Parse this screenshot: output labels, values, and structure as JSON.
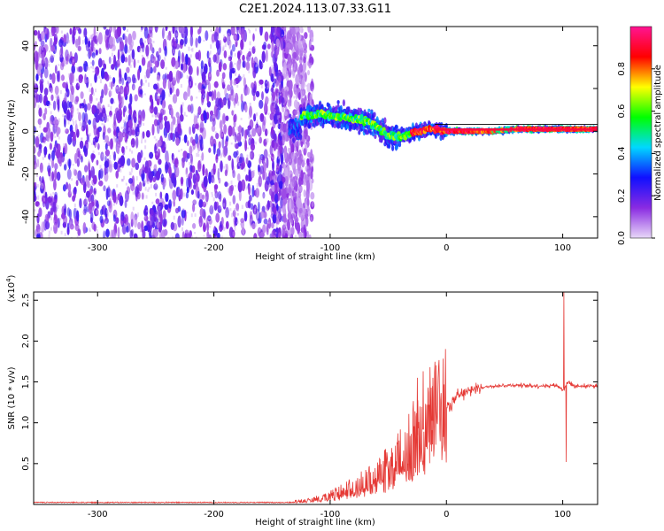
{
  "title": "C2E1.2024.113.07.33.G11",
  "chart_data": [
    {
      "type": "heatmap",
      "xlabel": "Height of straight line (km)",
      "ylabel": "Frequency (Hz)",
      "xlim": [
        -355,
        130
      ],
      "ylim": [
        -50,
        49
      ],
      "xticks": [
        "-300",
        "-200",
        "-100",
        "0",
        "100"
      ],
      "yticks": [
        "-40",
        "-20",
        "0",
        "20",
        "40"
      ],
      "ridge": [
        [
          -125,
          7
        ],
        [
          -110,
          8
        ],
        [
          -95,
          7
        ],
        [
          -80,
          6
        ],
        [
          -65,
          4
        ],
        [
          -50,
          -2
        ],
        [
          -40,
          -3
        ],
        [
          -30,
          -1
        ],
        [
          -15,
          1
        ],
        [
          0,
          0
        ],
        [
          20,
          0
        ],
        [
          40,
          0
        ],
        [
          60,
          1
        ],
        [
          80,
          1
        ],
        [
          100,
          1
        ],
        [
          125,
          1
        ]
      ],
      "colorbar": {
        "label": "Normalized spectral amplitude",
        "range": [
          0.0,
          1.0
        ],
        "ticks": [
          "0.0",
          "0.2",
          "0.4",
          "0.6",
          "0.8"
        ],
        "colors": [
          "#e8d8f8",
          "#8a2be2",
          "#1010ff",
          "#00d8ff",
          "#00ff00",
          "#ffff00",
          "#ff0000",
          "#ff1493"
        ]
      }
    },
    {
      "type": "line",
      "xlabel": "Height of straight line (km)",
      "ylabel": "SNR (10 * v/v)",
      "yscale_label": "(x10",
      "yscale_exp": "4",
      "xlim": [
        -355,
        130
      ],
      "ylim": [
        0,
        2.6
      ],
      "xticks": [
        "-300",
        "-200",
        "-100",
        "0",
        "100"
      ],
      "yticks": [
        "0.5",
        "1.0",
        "1.5",
        "2.0",
        "2.5"
      ],
      "color": "#e53935",
      "envelope": [
        [
          -355,
          0.02
        ],
        [
          -150,
          0.02
        ],
        [
          -120,
          0.04
        ],
        [
          -100,
          0.1
        ],
        [
          -80,
          0.2
        ],
        [
          -60,
          0.32
        ],
        [
          -40,
          0.55
        ],
        [
          -25,
          0.85
        ],
        [
          -10,
          1.05
        ],
        [
          0,
          1.2
        ],
        [
          10,
          1.32
        ],
        [
          25,
          1.42
        ],
        [
          40,
          1.45
        ],
        [
          60,
          1.46
        ],
        [
          80,
          1.45
        ],
        [
          95,
          1.46
        ],
        [
          100,
          1.4
        ],
        [
          105,
          1.5
        ],
        [
          110,
          1.45
        ],
        [
          130,
          1.45
        ]
      ],
      "spikes": [
        [
          -20,
          1.63
        ],
        [
          -25,
          1.55
        ],
        [
          -12,
          1.45
        ],
        [
          101,
          2.6
        ],
        [
          103,
          0.52
        ]
      ]
    }
  ]
}
